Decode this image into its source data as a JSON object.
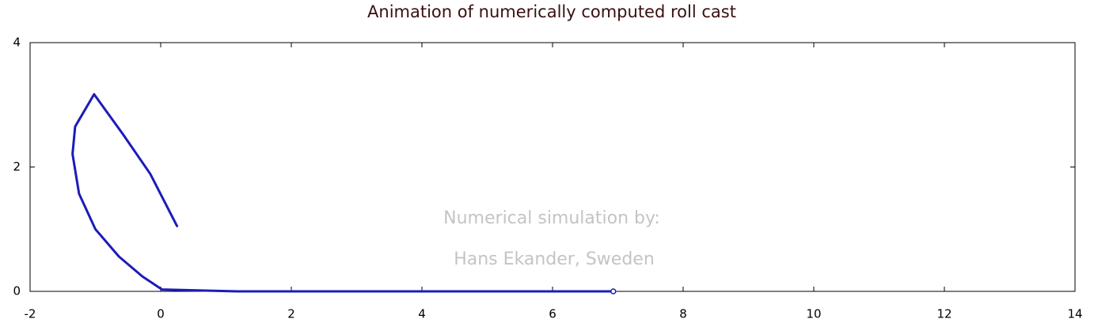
{
  "chart_data": {
    "type": "line",
    "title": "Animation of numerically computed roll cast",
    "series": [
      {
        "color": "#1c1cb8",
        "x": [
          0.25,
          -0.16,
          -0.58,
          -1.02,
          -1.31,
          -1.35,
          -1.25,
          -1.0,
          -0.64,
          -0.28,
          0.02,
          1.18,
          4.2,
          6.93
        ],
        "values": [
          1.05,
          1.89,
          2.53,
          3.17,
          2.65,
          2.21,
          1.57,
          1.0,
          0.56,
          0.24,
          0.03,
          0.0,
          0.0,
          0.0
        ]
      }
    ],
    "xlim": [
      -2,
      14
    ],
    "xticks": [
      -2,
      0,
      2,
      4,
      6,
      8,
      10,
      12,
      14
    ],
    "ylim": [
      0,
      4
    ],
    "yticks": [
      0,
      2,
      4
    ],
    "annotations": [
      "Numerical simulation by:",
      "Hans Ekander, Sweden"
    ]
  }
}
